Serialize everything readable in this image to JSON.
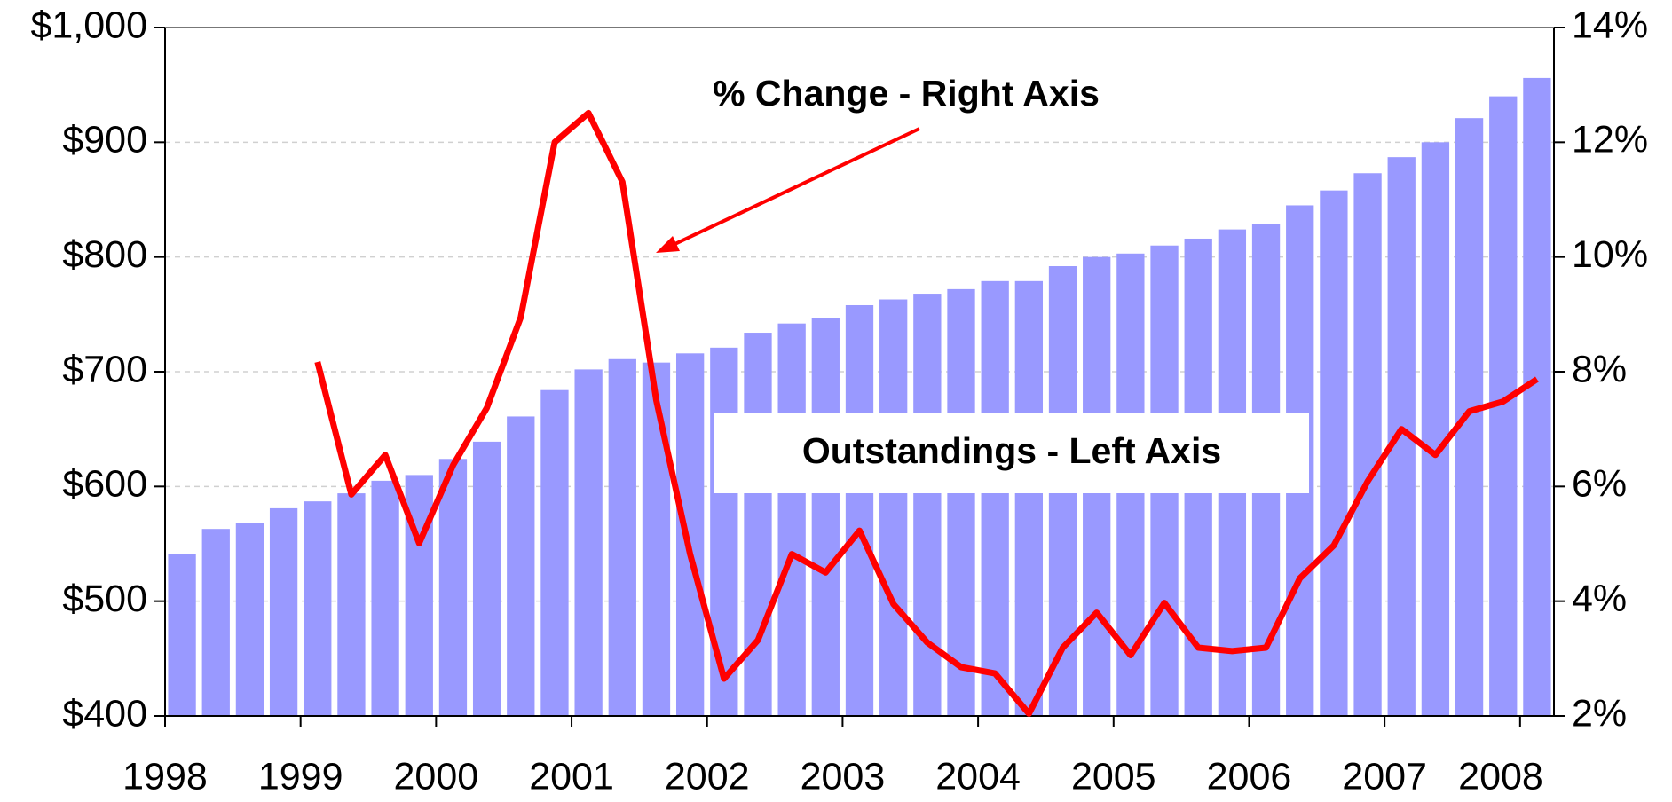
{
  "chart_data": {
    "type": "bar_line",
    "categories": [
      "1998",
      null,
      null,
      null,
      "1999",
      null,
      null,
      null,
      "2000",
      null,
      null,
      null,
      "2001",
      null,
      null,
      null,
      "2002",
      null,
      null,
      null,
      "2003",
      null,
      null,
      null,
      "2004",
      null,
      null,
      null,
      "2005",
      null,
      null,
      null,
      "2006",
      null,
      null,
      null,
      "2007",
      null,
      null,
      null,
      "2008"
    ],
    "series": [
      {
        "name": "Outstandings - Left Axis",
        "type": "bar",
        "color": "#9999ff",
        "values": [
          541,
          563,
          568,
          581,
          587,
          594,
          605,
          610,
          624,
          639,
          661,
          684,
          702,
          711,
          708,
          716,
          721,
          734,
          742,
          747,
          758,
          763,
          768,
          772,
          779,
          779,
          792,
          800,
          803,
          810,
          816,
          824,
          829,
          845,
          858,
          873,
          887,
          900,
          921,
          940,
          956
        ]
      },
      {
        "name": "% Change - Right Axis",
        "type": "line",
        "axis": "y2",
        "color": "#ff0000",
        "values": [
          null,
          null,
          null,
          null,
          8.17,
          5.86,
          6.55,
          5.01,
          6.37,
          7.37,
          8.95,
          12.0,
          12.51,
          11.31,
          7.5,
          4.82,
          2.65,
          3.32,
          4.82,
          4.5,
          5.23,
          3.95,
          3.28,
          2.85,
          2.74,
          2.04,
          3.19,
          3.8,
          3.06,
          3.97,
          3.19,
          3.13,
          3.19,
          4.4,
          4.97,
          6.09,
          7.0,
          6.55,
          7.31,
          7.48,
          7.87
        ]
      }
    ],
    "ylim": [
      400,
      1000
    ],
    "yticks": [
      {
        "value": 400,
        "label": "$400"
      },
      {
        "value": 500,
        "label": "$500"
      },
      {
        "value": 600,
        "label": "$600"
      },
      {
        "value": 700,
        "label": "$700"
      },
      {
        "value": 800,
        "label": "$800"
      },
      {
        "value": 900,
        "label": "$900"
      },
      {
        "value": 1000,
        "label": "$1,000"
      }
    ],
    "y2lim": [
      2,
      14
    ],
    "y2ticks": [
      {
        "value": 2,
        "label": "2%"
      },
      {
        "value": 4,
        "label": "4%"
      },
      {
        "value": 6,
        "label": "6%"
      },
      {
        "value": 8,
        "label": "8%"
      },
      {
        "value": 10,
        "label": "10%"
      },
      {
        "value": 12,
        "label": "12%"
      },
      {
        "value": 14,
        "label": "14%"
      }
    ],
    "grid": true
  }
}
